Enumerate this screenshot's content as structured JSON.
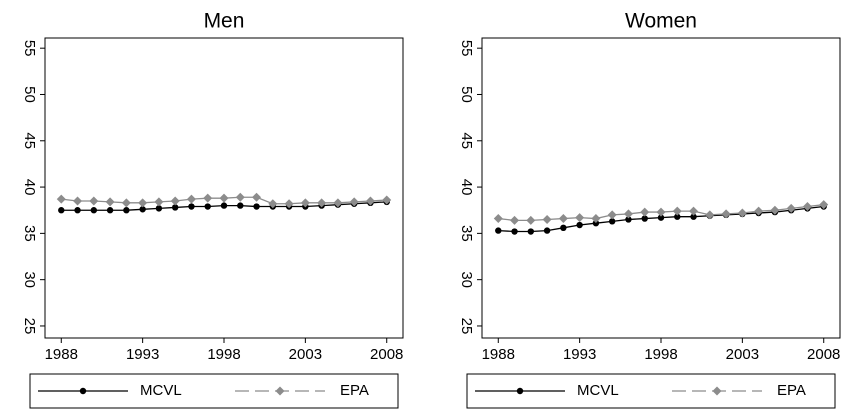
{
  "chart_data": [
    {
      "type": "line",
      "title": "Men",
      "x": [
        1988,
        1989,
        1990,
        1991,
        1992,
        1993,
        1994,
        1995,
        1996,
        1997,
        1998,
        1999,
        2000,
        2001,
        2002,
        2003,
        2004,
        2005,
        2006,
        2007,
        2008
      ],
      "series": [
        {
          "name": "MCVL",
          "color": "#000000",
          "marker": "circle",
          "values": [
            37.5,
            37.5,
            37.5,
            37.5,
            37.5,
            37.6,
            37.7,
            37.8,
            37.9,
            37.9,
            38.0,
            38.0,
            37.9,
            37.9,
            37.9,
            37.9,
            38.0,
            38.1,
            38.2,
            38.3,
            38.4
          ]
        },
        {
          "name": "EPA",
          "color": "#8c8c8c",
          "marker": "diamond",
          "values": [
            38.7,
            38.5,
            38.5,
            38.4,
            38.3,
            38.3,
            38.4,
            38.5,
            38.7,
            38.8,
            38.8,
            38.9,
            38.9,
            38.2,
            38.2,
            38.3,
            38.3,
            38.3,
            38.4,
            38.5,
            38.6
          ]
        }
      ],
      "xlim": [
        1987,
        2009
      ],
      "xticks": [
        1988,
        1993,
        1998,
        2003,
        2008
      ],
      "ylim": [
        23.7,
        56.1
      ],
      "yticks": [
        25,
        30,
        35,
        40,
        45,
        50,
        55
      ]
    },
    {
      "type": "line",
      "title": "Women",
      "x": [
        1988,
        1989,
        1990,
        1991,
        1992,
        1993,
        1994,
        1995,
        1996,
        1997,
        1998,
        1999,
        2000,
        2001,
        2002,
        2003,
        2004,
        2005,
        2006,
        2007,
        2008
      ],
      "series": [
        {
          "name": "MCVL",
          "color": "#000000",
          "marker": "circle",
          "values": [
            35.3,
            35.2,
            35.2,
            35.3,
            35.6,
            35.9,
            36.1,
            36.3,
            36.5,
            36.6,
            36.7,
            36.8,
            36.8,
            36.9,
            37.0,
            37.1,
            37.2,
            37.3,
            37.5,
            37.7,
            37.9
          ]
        },
        {
          "name": "EPA",
          "color": "#8c8c8c",
          "marker": "diamond",
          "values": [
            36.6,
            36.4,
            36.4,
            36.5,
            36.6,
            36.7,
            36.6,
            37.0,
            37.1,
            37.3,
            37.3,
            37.4,
            37.4,
            37.0,
            37.1,
            37.2,
            37.4,
            37.5,
            37.7,
            37.9,
            38.1
          ]
        }
      ],
      "xlim": [
        1987,
        2009
      ],
      "xticks": [
        1988,
        1993,
        1998,
        2003,
        2008
      ],
      "ylim": [
        23.7,
        56.1
      ],
      "yticks": [
        25,
        30,
        35,
        40,
        45,
        50,
        55
      ]
    }
  ]
}
